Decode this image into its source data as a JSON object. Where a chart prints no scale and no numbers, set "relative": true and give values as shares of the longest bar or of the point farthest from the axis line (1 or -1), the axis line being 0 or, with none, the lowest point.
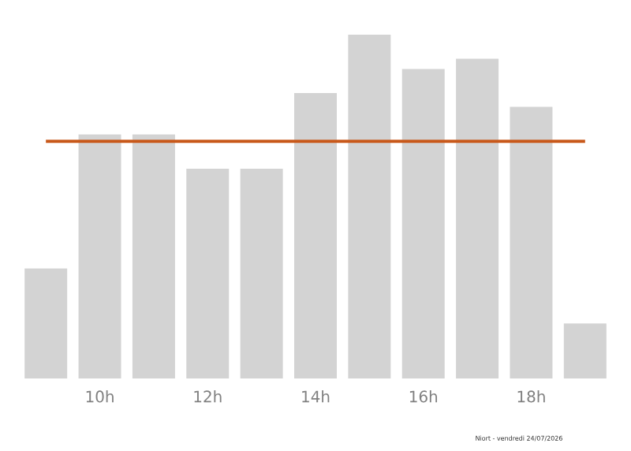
{
  "chart_data": {
    "type": "bar",
    "relative": true,
    "categories": [
      null,
      "10h",
      null,
      "12h",
      null,
      "14h",
      null,
      "16h",
      null,
      "18h",
      null
    ],
    "values": [
      0.32,
      0.71,
      0.71,
      0.61,
      0.61,
      0.83,
      1,
      0.9,
      0.93,
      0.79,
      0.16
    ],
    "color": "#d3d3d3",
    "ref_lines": [
      {
        "axis": "y",
        "value": 0.69,
        "color": "#c8581a"
      }
    ],
    "annotations": [
      "Niort - vendredi 24/07/2026"
    ]
  }
}
